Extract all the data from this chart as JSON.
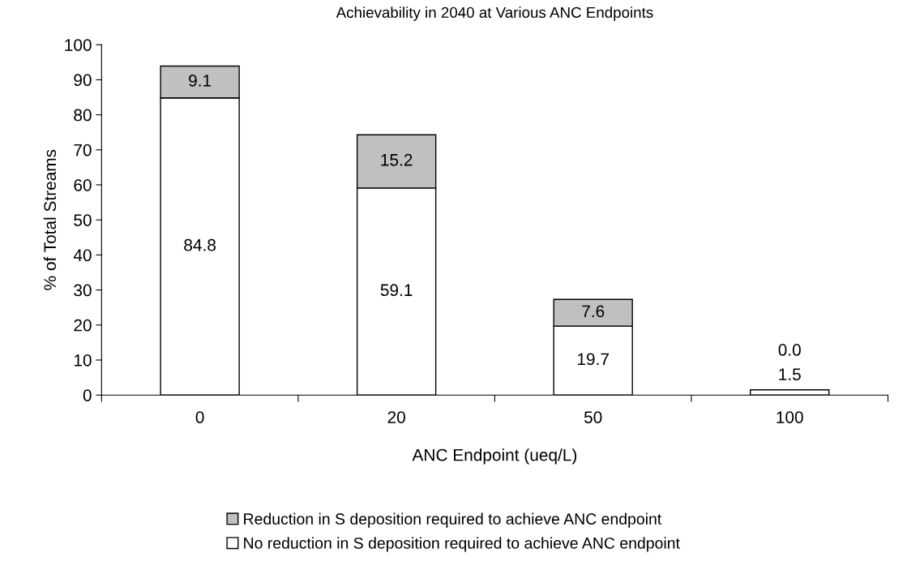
{
  "chart_data": {
    "type": "bar",
    "title": "Achievability in 2040 at Various ANC Endpoints",
    "xlabel": "ANC Endpoint (ueq/L)",
    "ylabel": "% of Total Streams",
    "categories": [
      "0",
      "20",
      "50",
      "100"
    ],
    "series": [
      {
        "name": "No reduction in S deposition required to achieve ANC endpoint",
        "color": "#ffffff",
        "values": [
          84.8,
          59.1,
          19.7,
          1.5
        ],
        "value_labels": [
          "84.8",
          "59.1",
          "19.7",
          "1.5"
        ]
      },
      {
        "name": "Reduction in S deposition required to achieve ANC endpoint",
        "color": "#c0c0c0",
        "values": [
          9.1,
          15.2,
          7.6,
          0.0
        ],
        "value_labels": [
          "9.1",
          "15.2",
          "7.6",
          "0.0"
        ]
      }
    ],
    "stacked": true,
    "ylim": [
      0,
      100
    ],
    "yticks": [
      0,
      10,
      20,
      30,
      40,
      50,
      60,
      70,
      80,
      90,
      100
    ],
    "grid": false,
    "legend": "bottom"
  }
}
